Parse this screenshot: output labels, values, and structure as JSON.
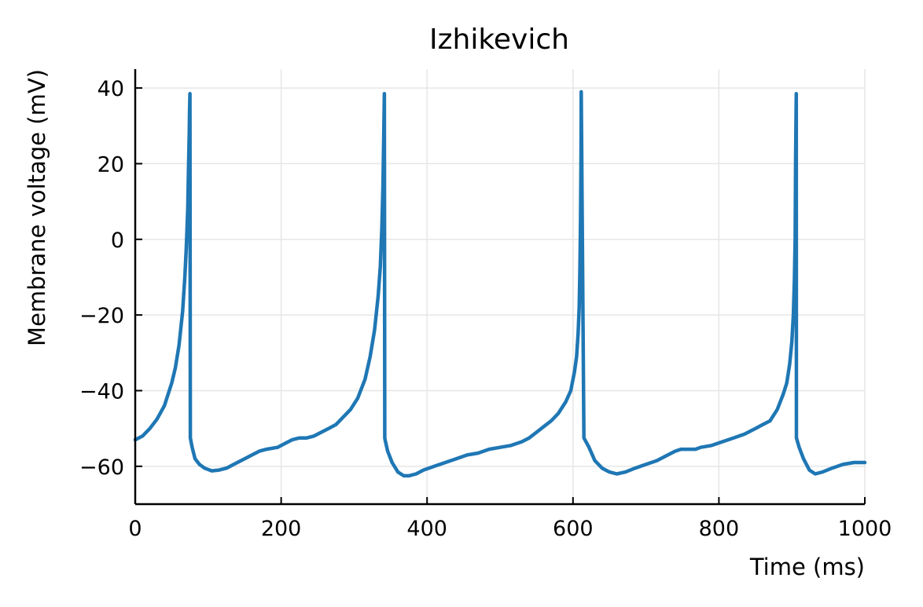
{
  "chart_data": {
    "type": "line",
    "title": "Izhikevich",
    "xlabel": "Time (ms)",
    "ylabel": "Membrane voltage (mV)",
    "xlim": [
      0,
      1000
    ],
    "ylim": [
      -70,
      45
    ],
    "xticks": [
      0,
      200,
      400,
      600,
      800,
      1000
    ],
    "yticks": [
      -60,
      -40,
      -20,
      0,
      20,
      40
    ],
    "xtick_labels": [
      "0",
      "200",
      "400",
      "600",
      "800",
      "1000"
    ],
    "ytick_labels": [
      "−60",
      "−40",
      "−20",
      "0",
      "20",
      "40"
    ],
    "grid": true,
    "color": "#1f77b4",
    "series": [
      {
        "name": "membrane voltage",
        "x": [
          0,
          10,
          20,
          30,
          40,
          50,
          55,
          60,
          65,
          68,
          70,
          72,
          73,
          74,
          74.5,
          75,
          75.5,
          78,
          82,
          88,
          95,
          105,
          115,
          125,
          140,
          150,
          160,
          170,
          180,
          195,
          205,
          215,
          225,
          235,
          245,
          255,
          265,
          275,
          285,
          295,
          305,
          315,
          322,
          328,
          333,
          336,
          338,
          339.5,
          340.5,
          341.5,
          342,
          342.5,
          346,
          352,
          360,
          368,
          375,
          385,
          395,
          410,
          425,
          440,
          455,
          470,
          485,
          500,
          515,
          530,
          540,
          550,
          560,
          570,
          580,
          590,
          597,
          602,
          605,
          607,
          608.5,
          609.5,
          610.3,
          611,
          611.3,
          615,
          622,
          630,
          640,
          650,
          660,
          672,
          685,
          700,
          715,
          730,
          740,
          748,
          758,
          768,
          775,
          790,
          805,
          820,
          835,
          850,
          860,
          870,
          880,
          888,
          893,
          897,
          900,
          902,
          903.5,
          904.5,
          905.2,
          906,
          906.3,
          910,
          916,
          924,
          932,
          942,
          955,
          970,
          985,
          1000
        ],
        "y": [
          -53,
          -52,
          -50,
          -47.5,
          -44,
          -38,
          -34,
          -28,
          -19,
          -10,
          -2,
          8,
          18,
          28,
          34,
          38.5,
          -52.5,
          -55,
          -58,
          -59.5,
          -60.5,
          -61.2,
          -61,
          -60.5,
          -59,
          -58,
          -57,
          -56,
          -55.5,
          -55,
          -54,
          -53,
          -52.5,
          -52.5,
          -52,
          -51,
          -50,
          -49,
          -47,
          -45,
          -42,
          -37,
          -31,
          -24,
          -15,
          -7,
          3,
          14,
          26,
          38.5,
          -52.5,
          -53,
          -56,
          -59,
          -61.5,
          -62.5,
          -62.5,
          -62,
          -61,
          -60,
          -59,
          -58,
          -57,
          -56.5,
          -55.5,
          -55,
          -54.5,
          -53.5,
          -52.5,
          -51,
          -49.5,
          -48,
          -46,
          -43,
          -40,
          -35,
          -31,
          -25,
          -18,
          -8,
          5,
          22,
          39,
          -52.5,
          -55,
          -58.5,
          -60.5,
          -61.5,
          -62,
          -61.5,
          -60.5,
          -59.5,
          -58.5,
          -57,
          -56,
          -55.5,
          -55.5,
          -55.5,
          -55,
          -54.5,
          -53.5,
          -52.5,
          -51.5,
          -50,
          -49,
          -48,
          -45,
          -41,
          -38,
          -33,
          -27,
          -20,
          -11,
          0,
          22,
          38.5,
          -52.5,
          -55,
          -58,
          -61,
          -62,
          -61.5,
          -60.5,
          -59.5,
          -59,
          -59
        ]
      }
    ]
  }
}
